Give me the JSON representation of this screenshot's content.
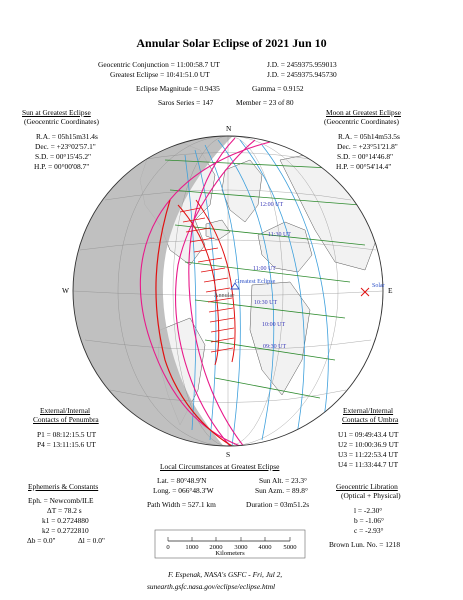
{
  "title": "Annular Solar Eclipse of  2021 Jun 10",
  "header": {
    "geocentric_conjunction": "Geocentric Conjunction =  11:00:58.7 UT",
    "greatest_eclipse": "Greatest Eclipse =  10:41:51.0 UT",
    "jd1": "J.D. =  2459375.959013",
    "jd2": "J.D. =  2459375.945730",
    "magnitude": "Eclipse Magnitude =  0.9435",
    "gamma": "Gamma =  0.9152",
    "saros": "Saros Series =  147",
    "member": "Member =  23 of 80"
  },
  "sun": {
    "title1": "Sun at Greatest Eclipse",
    "title2": "(Geocentric Coordinates)",
    "ra": "R.A. =  05h15m31.4s",
    "dec": "Dec. =  +23°02'57.1\"",
    "sd": "S.D. =  00°15'45.2\"",
    "hp": "H.P. =  00°00'08.7\""
  },
  "moon": {
    "title1": "Moon at Greatest Eclipse",
    "title2": "(Geocentric Coordinates)",
    "ra": "R.A. =  05h14m53.5s",
    "dec": "Dec. =  +23°51'21.8\"",
    "sd": "S.D. =  00°14'46.8\"",
    "hp": "H.P. =  00°54'14.4\""
  },
  "compass": {
    "n": "N",
    "s": "S",
    "w": "W",
    "e": "E"
  },
  "map_labels": {
    "greatest_eclipse": "Greatest Eclipse",
    "annular": "Annular",
    "solar": "Solar",
    "times": [
      "09:30 UT",
      "10:00 UT",
      "10:30 UT",
      "11:00 UT",
      "11:30 UT",
      "12:00 UT"
    ]
  },
  "penumbra": {
    "title1": "External/Internal",
    "title2": "Contacts of Penumbra",
    "p1": "P1 =  08:12:15.5 UT",
    "p4": "P4 =  13:11:15.6 UT"
  },
  "umbra": {
    "title1": "External/Internal",
    "title2": "Contacts of Umbra",
    "u1": "U1 =  09:49:43.4 UT",
    "u2": "U2 =  10:00:36.9 UT",
    "u3": "U3 =  11:22:53.4 UT",
    "u4": "U4 =  11:33:44.7 UT"
  },
  "local": {
    "title": "Local Circumstances at Greatest Eclipse",
    "lat": "Lat. =  80°48.9'N",
    "long": "Long. =  066°48.3'W",
    "sun_alt": "Sun Alt. =  23.3°",
    "sun_azm": "Sun Azm. =  89.8°",
    "path_width": "Path Width =  527.1 km",
    "duration": "Duration =  03m51.2s"
  },
  "ephemeris": {
    "title": "Ephemeris & Constants",
    "eph": "Eph. =  Newcomb/ILE",
    "dt": "ΔT =     78.2 s",
    "k1": "k1 =  0.2724880",
    "k2": "k2 =  0.2722810",
    "db": "Δb =    0.0\"",
    "dl": "Δl =    0.0\""
  },
  "libration": {
    "title1": "Geocentric Libration",
    "title2": "(Optical + Physical)",
    "l": "l =   -2.30°",
    "b": "b =   -1.06°",
    "c": "c =   -2.93°",
    "brown": "Brown Lun. No. =  1218"
  },
  "scale": {
    "ticks": [
      "0",
      "1000",
      "2000",
      "3000",
      "4000",
      "5000"
    ],
    "unit": "Kilometers"
  },
  "credit": {
    "line1": "F. Espenak, NASA's GSFC - Fri, Jul 2,",
    "line2": "sunearth.gsfc.nasa.gov/eclipse/eclipse.html"
  },
  "colors": {
    "penumbra_limit": "#e8198a",
    "umbra_path": "#e01010",
    "time_curves": "#3ea0dc",
    "ut_lines": "#2e8b2e",
    "land": "#f2f2f2",
    "night": "#b9b9b9"
  }
}
